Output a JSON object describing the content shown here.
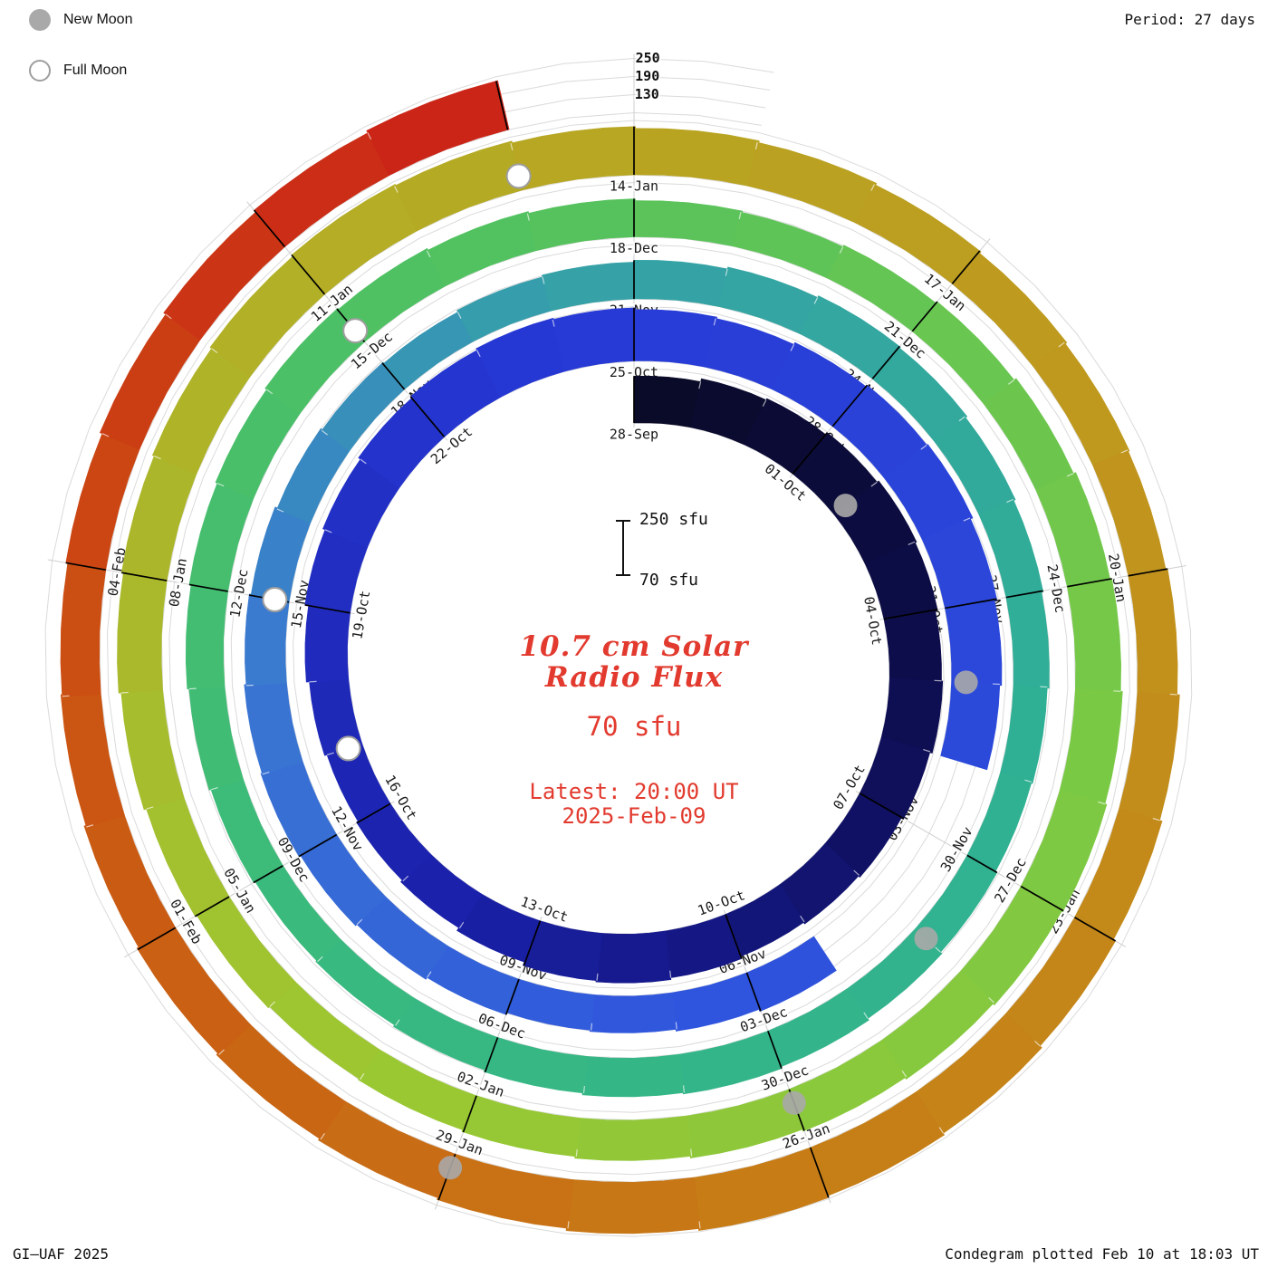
{
  "meta": {
    "period_label": "Period: 27 days",
    "credit": "GI–UAF 2025",
    "plotted": "Condegram plotted Feb 10 at 18:03 UT"
  },
  "legend": {
    "new_moon": "New Moon",
    "full_moon": "Full Moon"
  },
  "center": {
    "title_line1": "10.7 cm Solar",
    "title_line2": "Radio Flux",
    "value": "70 sfu",
    "latest_line1": "Latest: 20:00 UT",
    "latest_line2": "2025-Feb-09"
  },
  "scalebar": {
    "top": "250 sfu",
    "bottom": "70 sfu"
  },
  "chart_data": {
    "type": "bar",
    "layout": "polar spiral condegram; 27 days per revolution, clockwise from top; bar height = flux above 70 sfu baseline; color advances with date from dark navy to red",
    "title": "10.7 cm Solar Radio Flux",
    "units": "sfu",
    "period_days": 27,
    "baseline_sfu": 70,
    "flux_scale_max": 250,
    "radial_ticks": [
      130,
      190,
      250
    ],
    "start_date": "2024-09-28",
    "end_date": "2025-02-09",
    "text_color": "#e23a2e",
    "day_labels": [
      {
        "d": 0,
        "t": "28-Sep"
      },
      {
        "d": 3,
        "t": "01-Oct"
      },
      {
        "d": 6,
        "t": "04-Oct"
      },
      {
        "d": 9,
        "t": "07-Oct"
      },
      {
        "d": 12,
        "t": "10-Oct"
      },
      {
        "d": 15,
        "t": "13-Oct"
      },
      {
        "d": 18,
        "t": "16-Oct"
      },
      {
        "d": 21,
        "t": "19-Oct"
      },
      {
        "d": 24,
        "t": "22-Oct"
      },
      {
        "d": 27,
        "t": "25-Oct"
      },
      {
        "d": 30,
        "t": "28-Oct"
      },
      {
        "d": 33,
        "t": "31-Oct"
      },
      {
        "d": 36,
        "t": "03-Nov"
      },
      {
        "d": 39,
        "t": "06-Nov"
      },
      {
        "d": 42,
        "t": "09-Nov"
      },
      {
        "d": 45,
        "t": "12-Nov"
      },
      {
        "d": 48,
        "t": "15-Nov"
      },
      {
        "d": 51,
        "t": "18-Nov"
      },
      {
        "d": 54,
        "t": "21-Nov"
      },
      {
        "d": 57,
        "t": "24-Nov"
      },
      {
        "d": 60,
        "t": "27-Nov"
      },
      {
        "d": 63,
        "t": "30-Nov"
      },
      {
        "d": 66,
        "t": "03-Dec"
      },
      {
        "d": 69,
        "t": "06-Dec"
      },
      {
        "d": 72,
        "t": "09-Dec"
      },
      {
        "d": 75,
        "t": "12-Dec"
      },
      {
        "d": 78,
        "t": "15-Dec"
      },
      {
        "d": 81,
        "t": "18-Dec"
      },
      {
        "d": 84,
        "t": "21-Dec"
      },
      {
        "d": 87,
        "t": "24-Dec"
      },
      {
        "d": 90,
        "t": "27-Dec"
      },
      {
        "d": 93,
        "t": "30-Dec"
      },
      {
        "d": 96,
        "t": "02-Jan"
      },
      {
        "d": 99,
        "t": "05-Jan"
      },
      {
        "d": 102,
        "t": "08-Jan"
      },
      {
        "d": 105,
        "t": "11-Jan"
      },
      {
        "d": 108,
        "t": "14-Jan"
      },
      {
        "d": 111,
        "t": "17-Jan"
      },
      {
        "d": 114,
        "t": "20-Jan"
      },
      {
        "d": 117,
        "t": "23-Jan"
      },
      {
        "d": 120,
        "t": "26-Jan"
      },
      {
        "d": 123,
        "t": "29-Jan"
      },
      {
        "d": 126,
        "t": "01-Feb"
      },
      {
        "d": 129,
        "t": "04-Feb"
      }
    ],
    "flux_by_day": [
      225,
      235,
      240,
      248,
      255,
      250,
      242,
      246,
      238,
      230,
      224,
      218,
      226,
      232,
      228,
      216,
      205,
      198,
      192,
      200,
      210,
      222,
      230,
      238,
      244,
      250,
      246,
      240,
      235,
      242,
      248,
      252,
      244,
      236,
      230,
      null,
      null,
      null,
      205,
      198,
      192,
      188,
      195,
      202,
      208,
      214,
      210,
      204,
      198,
      190,
      184,
      180,
      186,
      192,
      198,
      204,
      210,
      206,
      200,
      194,
      188,
      182,
      178,
      184,
      190,
      196,
      202,
      198,
      192,
      186,
      180,
      176,
      182,
      188,
      194,
      200,
      206,
      212,
      208,
      202,
      196,
      190,
      186,
      192,
      198,
      206,
      214,
      220,
      226,
      232,
      228,
      222,
      216,
      210,
      204,
      198,
      192,
      188,
      194,
      200,
      208,
      216,
      222,
      228,
      234,
      240,
      236,
      230,
      224,
      218,
      212,
      206,
      200,
      196,
      202,
      210,
      218,
      226,
      234,
      240,
      246,
      240,
      232,
      226,
      220,
      214,
      208,
      202,
      198,
      204,
      212,
      220,
      228,
      236,
      230
    ],
    "moons": {
      "new_dates": [
        "2024-10-02",
        "2024-11-01",
        "2024-12-01",
        "2024-12-30",
        "2025-01-29"
      ],
      "new_day_index": [
        4,
        34,
        64,
        93,
        123
      ],
      "full_dates": [
        "2024-10-17",
        "2024-11-15",
        "2024-12-15",
        "2025-01-13"
      ],
      "full_day_index": [
        19,
        48,
        78,
        107
      ]
    },
    "color_stops": [
      [
        0,
        "#0a0a26"
      ],
      [
        8,
        "#0e0e55"
      ],
      [
        16,
        "#1a20a8"
      ],
      [
        26,
        "#2739d6"
      ],
      [
        40,
        "#2f55dd"
      ],
      [
        47,
        "#3a76d2"
      ],
      [
        53,
        "#36a0a8"
      ],
      [
        62,
        "#2fb193"
      ],
      [
        71,
        "#38b97e"
      ],
      [
        80,
        "#54c25e"
      ],
      [
        89,
        "#7cc944"
      ],
      [
        97,
        "#9cc832"
      ],
      [
        105,
        "#b3ae26"
      ],
      [
        113,
        "#c0961d"
      ],
      [
        121,
        "#c77a16"
      ],
      [
        128,
        "#cb5212"
      ],
      [
        134,
        "#cb2117"
      ]
    ]
  }
}
